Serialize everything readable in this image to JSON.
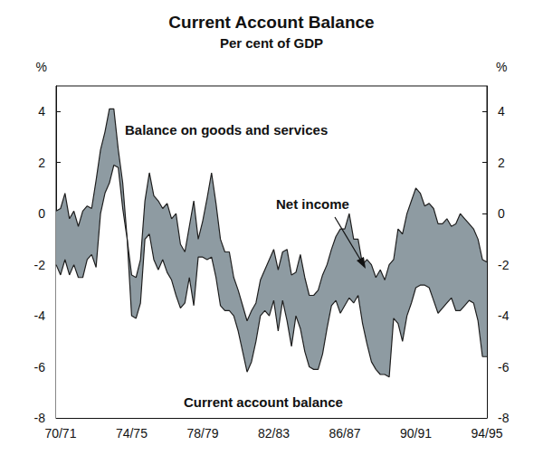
{
  "chart_data": {
    "type": "line",
    "title": "Current Account Balance",
    "subtitle": "Per cent of GDP",
    "ylabel": "%",
    "annotations": [
      "Balance on goods and services",
      "Net income",
      "Current account balance"
    ],
    "categories": [
      null,
      "70/71",
      null,
      null,
      null,
      null,
      null,
      null,
      null,
      null,
      null,
      null,
      null,
      null,
      null,
      null,
      null,
      "74/75",
      null,
      null,
      null,
      null,
      null,
      null,
      null,
      null,
      null,
      null,
      null,
      null,
      null,
      null,
      null,
      "78/79",
      null,
      null,
      null,
      null,
      null,
      null,
      null,
      null,
      null,
      null,
      null,
      null,
      null,
      null,
      null,
      "82/83",
      null,
      null,
      null,
      null,
      null,
      null,
      null,
      null,
      null,
      null,
      null,
      null,
      null,
      null,
      null,
      "86/87",
      null,
      null,
      null,
      null,
      null,
      null,
      null,
      null,
      null,
      null,
      null,
      null,
      null,
      null,
      null,
      "90/91",
      null,
      null,
      null,
      null,
      null,
      null,
      null,
      null,
      null,
      null,
      null,
      null,
      null,
      null,
      null,
      "94/95"
    ],
    "series": [
      {
        "name": "Balance on goods and services",
        "color": "#1f1f1f",
        "values": [
          0.1,
          0.2,
          0.8,
          -0.2,
          0.1,
          -0.5,
          0.1,
          0.3,
          0.2,
          1.3,
          2.5,
          3.2,
          4.1,
          4.1,
          2.5,
          1.2,
          -1.0,
          -2.4,
          -2.5,
          -1.8,
          0.5,
          1.6,
          0.7,
          0.5,
          0.2,
          0.4,
          -0.2,
          0.0,
          -1.2,
          -1.5,
          -0.5,
          0.5,
          -1.0,
          -0.3,
          0.6,
          1.6,
          0.4,
          -1.0,
          -1.5,
          -1.5,
          -2.5,
          -3.0,
          -3.6,
          -4.2,
          -3.8,
          -3.5,
          -2.6,
          -2.2,
          -1.8,
          -1.4,
          -2.2,
          -1.5,
          -1.4,
          -2.4,
          -2.3,
          -1.6,
          -2.5,
          -3.2,
          -3.2,
          -3.0,
          -2.4,
          -2.0,
          -1.4,
          -0.9,
          -0.6,
          -0.6,
          0.0,
          -1.0,
          -1.0,
          -2.0,
          -1.8,
          -2.0,
          -2.5,
          -2.2,
          -2.6,
          -2.0,
          -1.8,
          -0.6,
          -0.8,
          0.0,
          0.5,
          1.0,
          0.8,
          0.3,
          0.4,
          0.2,
          -0.4,
          -0.4,
          -0.2,
          -0.5,
          -0.4,
          0.0,
          -0.2,
          -0.4,
          -0.6,
          -1.0,
          -1.8,
          -1.9
        ]
      },
      {
        "name": "Current account balance",
        "color": "#1f1f1f",
        "values": [
          -2.0,
          -2.4,
          -1.8,
          -2.4,
          -2.0,
          -2.5,
          -2.5,
          -1.8,
          -1.6,
          -2.1,
          0.0,
          0.8,
          1.2,
          1.9,
          1.8,
          0.2,
          -1.0,
          -4.0,
          -4.1,
          -3.5,
          -1.0,
          -0.8,
          -1.8,
          -2.2,
          -1.8,
          -2.3,
          -2.6,
          -3.2,
          -3.7,
          -3.5,
          -2.5,
          -3.6,
          -1.7,
          -1.7,
          -1.8,
          -1.7,
          -2.5,
          -3.6,
          -3.8,
          -3.8,
          -4.0,
          -4.6,
          -5.4,
          -6.2,
          -5.8,
          -5.0,
          -4.0,
          -3.8,
          -4.0,
          -3.4,
          -4.6,
          -3.4,
          -4.2,
          -5.2,
          -4.0,
          -4.5,
          -5.4,
          -6.0,
          -6.1,
          -6.1,
          -5.5,
          -4.5,
          -3.6,
          -3.4,
          -3.9,
          -3.6,
          -3.3,
          -3.5,
          -3.2,
          -4.3,
          -5.1,
          -5.8,
          -6.1,
          -6.3,
          -6.3,
          -6.4,
          -4.1,
          -4.3,
          -5.0,
          -4.0,
          -3.5,
          -2.9,
          -2.8,
          -2.8,
          -2.9,
          -3.4,
          -3.9,
          -3.7,
          -3.5,
          -3.3,
          -3.8,
          -3.8,
          -3.6,
          -3.4,
          -3.5,
          -4.2,
          -5.6,
          -5.6
        ]
      }
    ],
    "ylim": [
      -8,
      5
    ],
    "yticks": [
      -8,
      -6,
      -4,
      -2,
      0,
      2,
      4
    ],
    "grid": false
  }
}
